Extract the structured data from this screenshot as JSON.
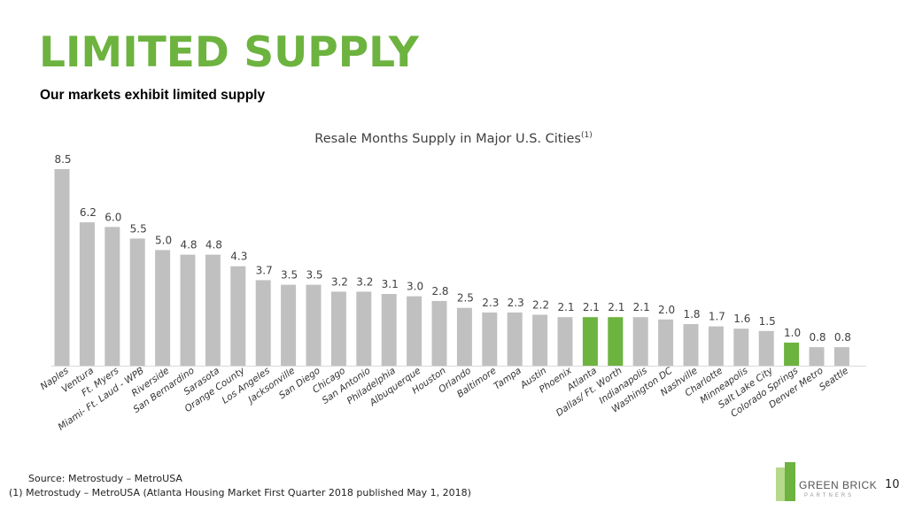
{
  "header": {
    "title": "LIMITED SUPPLY",
    "subtitle": "Our markets exhibit limited supply"
  },
  "chart_data": {
    "type": "bar",
    "title": "Resale Months Supply in Major U.S. Cities",
    "title_superscript": "(1)",
    "categories": [
      "Naples",
      "Ventura",
      "Ft. Myers",
      "Miami- Ft. Laud - WPB",
      "Riverside",
      "San Bernardino",
      "Sarasota",
      "Orange County",
      "Los Angeles",
      "Jacksonville",
      "San Diego",
      "Chicago",
      "San Antonio",
      "Philadelphia",
      "Albuquerque",
      "Houston",
      "Orlando",
      "Baltimore",
      "Tampa",
      "Austin",
      "Phoenix",
      "Atlanta",
      "Dallas/ Ft. Worth",
      "Indianapolis",
      "Washington DC",
      "Nashville",
      "Charlotte",
      "Minneapolis",
      "Salt Lake City",
      "Colorado Springs",
      "Denver Metro",
      "Seattle"
    ],
    "values": [
      8.5,
      6.2,
      6.0,
      5.5,
      5.0,
      4.8,
      4.8,
      4.3,
      3.7,
      3.5,
      3.5,
      3.2,
      3.2,
      3.1,
      3.0,
      2.8,
      2.5,
      2.3,
      2.3,
      2.2,
      2.1,
      2.1,
      2.1,
      2.1,
      2.0,
      1.8,
      1.7,
      1.6,
      1.5,
      1.0,
      0.8,
      0.8
    ],
    "labels": [
      "8.5",
      "6.2",
      "6.0",
      "5.5",
      "5.0",
      "4.8",
      "4.8",
      "4.3",
      "3.7",
      "3.5",
      "3.5",
      "3.2",
      "3.2",
      "3.1",
      "3.0",
      "2.8",
      "2.5",
      "2.3",
      "2.3",
      "2.2",
      "2.1",
      "2.1",
      "2.1",
      "2.1",
      "2.0",
      "1.8",
      "1.7",
      "1.6",
      "1.5",
      "1.0",
      "0.8",
      "0.8"
    ],
    "highlighted": [
      "Atlanta",
      "Dallas/ Ft. Worth",
      "Colorado Springs"
    ],
    "ylim": [
      0,
      8.5
    ],
    "grid": false,
    "legend": "none",
    "colors": {
      "default": "#c0c0c0",
      "highlight": "#6db33f"
    }
  },
  "footnotes": {
    "source": "Source: Metrostudy – MetroUSA",
    "note1": "(1)  Metrostudy – MetroUSA (Atlanta Housing Market First Quarter 2018 published May 1, 2018)"
  },
  "logo": {
    "name": "GREEN BRICK",
    "sub": "PARTNERS",
    "colors": {
      "dark": "#6db33f",
      "light": "#b7d98b"
    }
  },
  "page_number": "10"
}
